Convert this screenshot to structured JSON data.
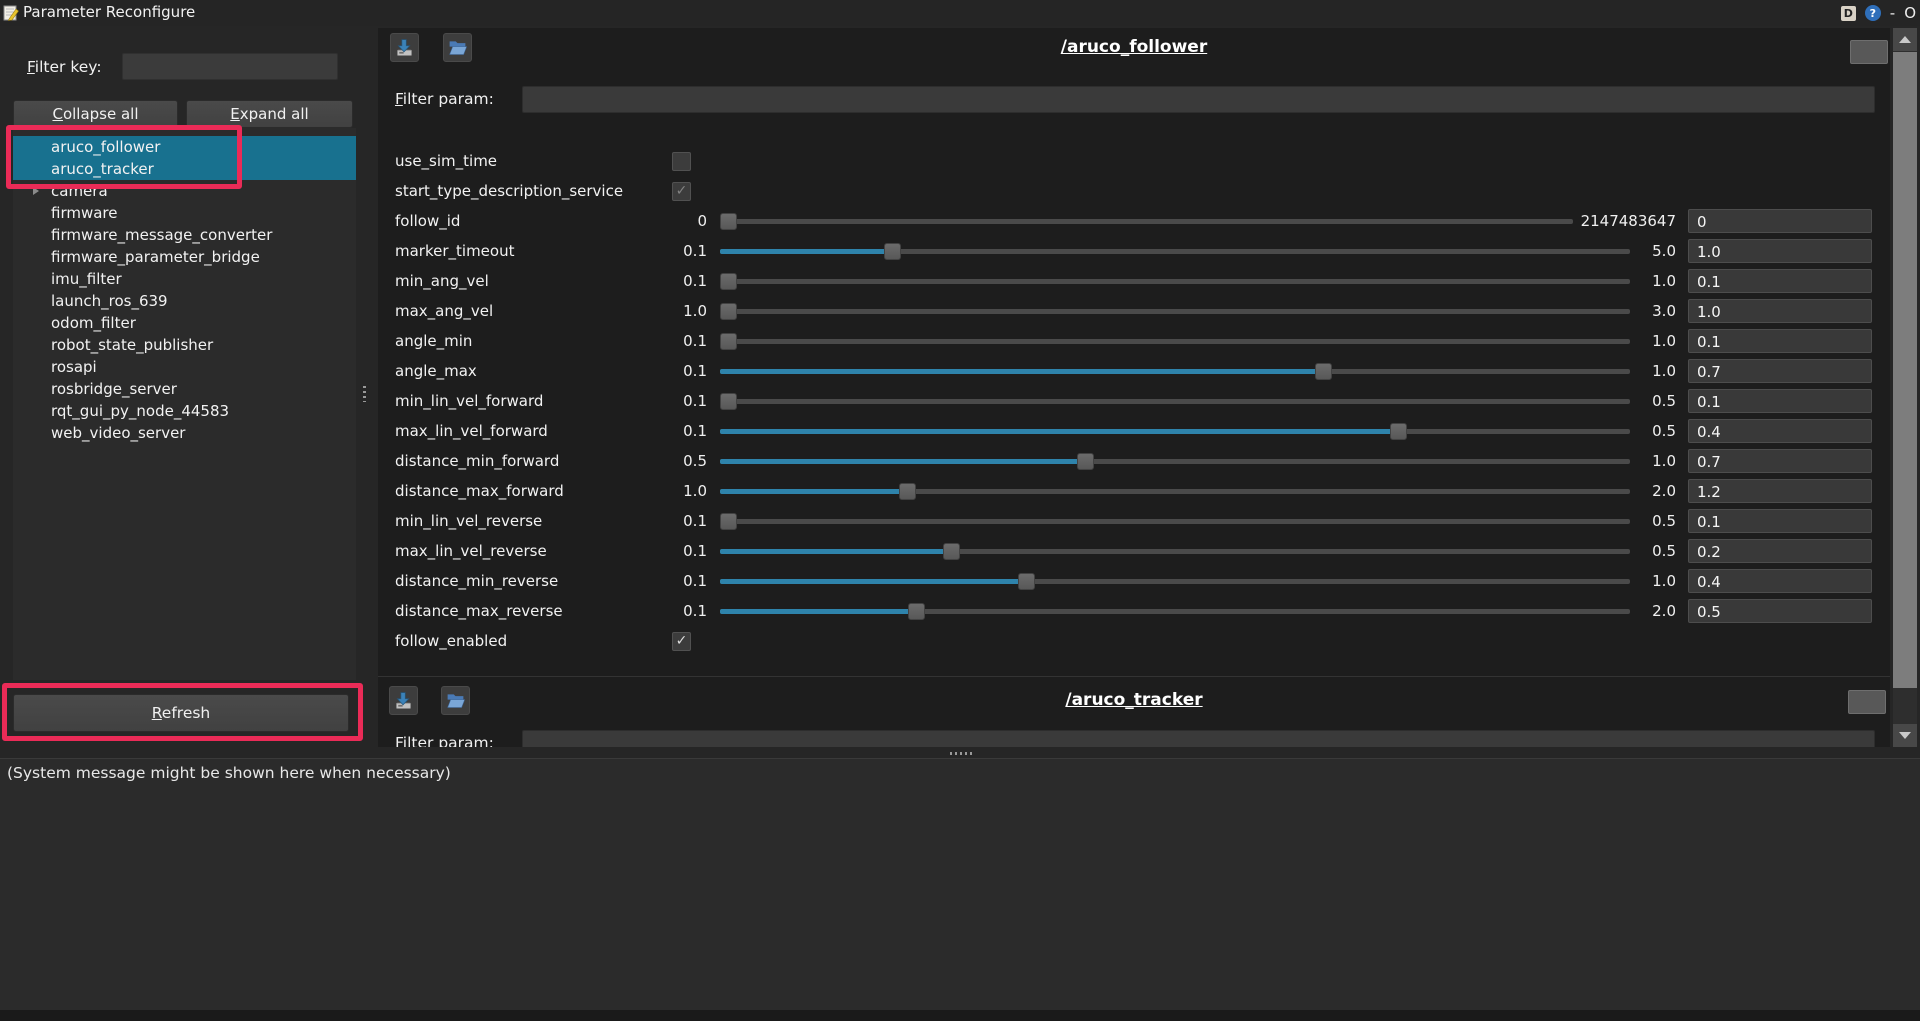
{
  "window": {
    "title": "Parameter Reconfigure",
    "controls": {
      "dock": "D",
      "help": "?",
      "minimize": "-",
      "close": "O"
    }
  },
  "left_panel": {
    "filter_key_mn": "F",
    "filter_key_rest": "ilter key:",
    "filter_key_value": "",
    "collapse_mn": "C",
    "collapse_rest": "ollapse all",
    "expand_mn": "E",
    "expand_rest": "xpand all",
    "refresh_mn": "R",
    "refresh_rest": "efresh",
    "tree": [
      {
        "label": "aruco_follower",
        "selected": true
      },
      {
        "label": "aruco_tracker",
        "selected": true
      },
      {
        "label": "camera",
        "expandable": true
      },
      {
        "label": "firmware"
      },
      {
        "label": "firmware_message_converter"
      },
      {
        "label": "firmware_parameter_bridge"
      },
      {
        "label": "imu_filter"
      },
      {
        "label": "launch_ros_639"
      },
      {
        "label": "odom_filter"
      },
      {
        "label": "robot_state_publisher"
      },
      {
        "label": "rosapi"
      },
      {
        "label": "rosbridge_server"
      },
      {
        "label": "rqt_gui_py_node_44583"
      },
      {
        "label": "web_video_server"
      }
    ]
  },
  "groups": [
    {
      "title": "/aruco_follower",
      "filter_mn": "F",
      "filter_rest": "ilter param:",
      "filter_value": "",
      "params": [
        {
          "name": "use_sim_time",
          "type": "bool",
          "checked": false
        },
        {
          "name": "start_type_description_service",
          "type": "bool",
          "checked": true,
          "disabled": true
        },
        {
          "name": "follow_id",
          "type": "number",
          "min": "0",
          "max": "2147483647",
          "value": "0"
        },
        {
          "name": "marker_timeout",
          "type": "number",
          "min": "0.1",
          "max": "5.0",
          "value": "1.0"
        },
        {
          "name": "min_ang_vel",
          "type": "number",
          "min": "0.1",
          "max": "1.0",
          "value": "0.1"
        },
        {
          "name": "max_ang_vel",
          "type": "number",
          "min": "1.0",
          "max": "3.0",
          "value": "1.0"
        },
        {
          "name": "angle_min",
          "type": "number",
          "min": "0.1",
          "max": "1.0",
          "value": "0.1"
        },
        {
          "name": "angle_max",
          "type": "number",
          "min": "0.1",
          "max": "1.0",
          "value": "0.7"
        },
        {
          "name": "min_lin_vel_forward",
          "type": "number",
          "min": "0.1",
          "max": "0.5",
          "value": "0.1"
        },
        {
          "name": "max_lin_vel_forward",
          "type": "number",
          "min": "0.1",
          "max": "0.5",
          "value": "0.4"
        },
        {
          "name": "distance_min_forward",
          "type": "number",
          "min": "0.5",
          "max": "1.0",
          "value": "0.7"
        },
        {
          "name": "distance_max_forward",
          "type": "number",
          "min": "1.0",
          "max": "2.0",
          "value": "1.2"
        },
        {
          "name": "min_lin_vel_reverse",
          "type": "number",
          "min": "0.1",
          "max": "0.5",
          "value": "0.1"
        },
        {
          "name": "max_lin_vel_reverse",
          "type": "number",
          "min": "0.1",
          "max": "0.5",
          "value": "0.2"
        },
        {
          "name": "distance_min_reverse",
          "type": "number",
          "min": "0.1",
          "max": "1.0",
          "value": "0.4"
        },
        {
          "name": "distance_max_reverse",
          "type": "number",
          "min": "0.1",
          "max": "2.0",
          "value": "0.5"
        },
        {
          "name": "follow_enabled",
          "type": "bool",
          "checked": true
        }
      ]
    },
    {
      "title": "/aruco_tracker",
      "filter_mn": "F",
      "filter_rest": "ilter param:",
      "filter_value": "",
      "params": []
    }
  ],
  "status_message": "(System message might be shown here when necessary)",
  "colors": {
    "accent": "#2e83ab",
    "selection": "#18718f",
    "annotation": "#ea2b57"
  },
  "icons": {
    "toolbar": [
      "save-icon",
      "open-icon"
    ],
    "check_glyph": "✓"
  }
}
